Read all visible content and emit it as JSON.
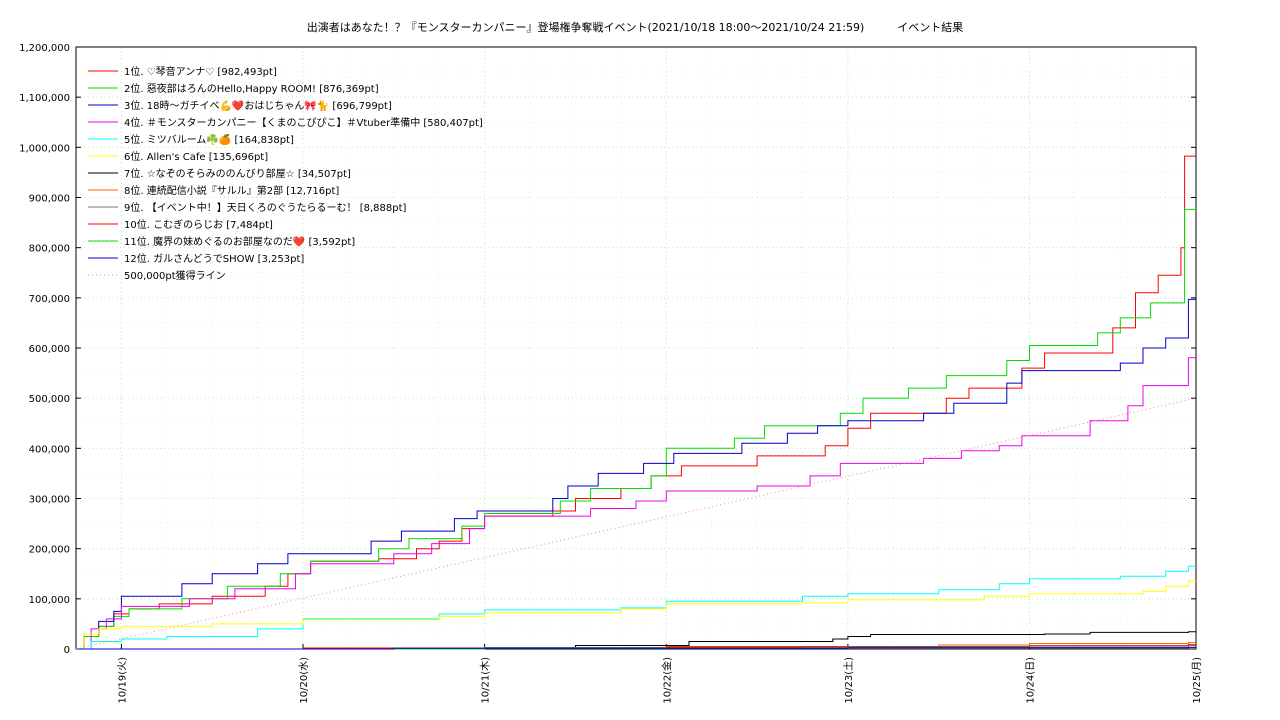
{
  "chart_data": {
    "type": "line",
    "title": "出演者はあなた！？『モンスターカンパニー』登場権争奪戦イベント(2021/10/18 18:00〜2021/10/24 21:59)　　　イベント結果",
    "xlabel": "",
    "ylabel": "",
    "ylim": [
      0,
      1200000
    ],
    "xlim": [
      "2021-10-18 18:00",
      "2021-10-24 22:00"
    ],
    "grid": true,
    "legend_position": "top-left",
    "y_ticks": [
      "0",
      "100,000",
      "200,000",
      "300,000",
      "400,000",
      "500,000",
      "600,000",
      "700,000",
      "800,000",
      "900,000",
      "1,000,000",
      "1,100,000",
      "1,200,000"
    ],
    "x_ticks": [
      {
        "x": "2021-10-19 00:00",
        "label": "10/19(火)"
      },
      {
        "x": "2021-10-20 00:00",
        "label": "10/20(水)"
      },
      {
        "x": "2021-10-21 00:00",
        "label": "10/21(木)"
      },
      {
        "x": "2021-10-22 00:00",
        "label": "10/22(金)"
      },
      {
        "x": "2021-10-23 00:00",
        "label": "10/23(土)"
      },
      {
        "x": "2021-10-24 00:00",
        "label": "10/24(日)"
      },
      {
        "x": "2021-10-25 00:00",
        "label": "10/25(月)"
      }
    ],
    "series": [
      {
        "name": "1位. ♡琴音アンナ♡ [982,493pt]",
        "color": "#ff0000",
        "points": [
          [
            "2021-10-18 18:00",
            0
          ],
          [
            "2021-10-18 19:00",
            25000
          ],
          [
            "2021-10-18 21:00",
            45000
          ],
          [
            "2021-10-18 23:00",
            70000
          ],
          [
            "2021-10-19 01:00",
            80000
          ],
          [
            "2021-10-19 05:00",
            90000
          ],
          [
            "2021-10-19 12:00",
            105000
          ],
          [
            "2021-10-19 19:00",
            125000
          ],
          [
            "2021-10-19 22:00",
            150000
          ],
          [
            "2021-10-20 01:00",
            175000
          ],
          [
            "2021-10-20 10:00",
            180000
          ],
          [
            "2021-10-20 15:00",
            200000
          ],
          [
            "2021-10-20 18:00",
            215000
          ],
          [
            "2021-10-20 21:00",
            240000
          ],
          [
            "2021-10-21 00:00",
            265000
          ],
          [
            "2021-10-21 09:00",
            275000
          ],
          [
            "2021-10-21 12:00",
            300000
          ],
          [
            "2021-10-21 18:00",
            320000
          ],
          [
            "2021-10-21 22:00",
            345000
          ],
          [
            "2021-10-22 02:00",
            365000
          ],
          [
            "2021-10-22 12:00",
            385000
          ],
          [
            "2021-10-22 21:00",
            405000
          ],
          [
            "2021-10-23 00:00",
            440000
          ],
          [
            "2021-10-23 03:00",
            470000
          ],
          [
            "2021-10-23 13:00",
            500000
          ],
          [
            "2021-10-23 16:00",
            520000
          ],
          [
            "2021-10-23 23:00",
            560000
          ],
          [
            "2021-10-24 02:00",
            590000
          ],
          [
            "2021-10-24 11:00",
            640000
          ],
          [
            "2021-10-24 14:00",
            710000
          ],
          [
            "2021-10-24 17:00",
            745000
          ],
          [
            "2021-10-24 20:00",
            800000
          ],
          [
            "2021-10-24 20:30",
            982493
          ],
          [
            "2021-10-24 22:00",
            982493
          ]
        ]
      },
      {
        "name": "2位. 惡夜部はろんのHello,Happy ROOM! [876,369pt]",
        "color": "#00dd00",
        "points": [
          [
            "2021-10-18 18:00",
            0
          ],
          [
            "2021-10-18 19:00",
            25000
          ],
          [
            "2021-10-18 21:00",
            45000
          ],
          [
            "2021-10-18 23:00",
            65000
          ],
          [
            "2021-10-19 01:00",
            80000
          ],
          [
            "2021-10-19 08:00",
            100000
          ],
          [
            "2021-10-19 14:00",
            125000
          ],
          [
            "2021-10-19 21:00",
            150000
          ],
          [
            "2021-10-20 01:00",
            175000
          ],
          [
            "2021-10-20 10:00",
            200000
          ],
          [
            "2021-10-20 14:00",
            220000
          ],
          [
            "2021-10-20 21:00",
            245000
          ],
          [
            "2021-10-21 00:00",
            270000
          ],
          [
            "2021-10-21 10:00",
            295000
          ],
          [
            "2021-10-21 14:00",
            320000
          ],
          [
            "2021-10-21 22:00",
            345000
          ],
          [
            "2021-10-22 00:00",
            400000
          ],
          [
            "2021-10-22 09:00",
            420000
          ],
          [
            "2021-10-22 13:00",
            445000
          ],
          [
            "2021-10-22 23:00",
            470000
          ],
          [
            "2021-10-23 02:00",
            500000
          ],
          [
            "2021-10-23 08:00",
            520000
          ],
          [
            "2021-10-23 13:00",
            545000
          ],
          [
            "2021-10-23 21:00",
            575000
          ],
          [
            "2021-10-24 00:00",
            605000
          ],
          [
            "2021-10-24 09:00",
            630000
          ],
          [
            "2021-10-24 12:00",
            660000
          ],
          [
            "2021-10-24 16:00",
            690000
          ],
          [
            "2021-10-24 20:30",
            876369
          ],
          [
            "2021-10-24 22:00",
            876369
          ]
        ]
      },
      {
        "name": "3位. 18時〜ガチイベ💪❤️おはじちゃん🎀🐈 [696,799pt]",
        "color": "#0000cc",
        "points": [
          [
            "2021-10-18 18:00",
            0
          ],
          [
            "2021-10-18 19:00",
            30000
          ],
          [
            "2021-10-18 21:00",
            55000
          ],
          [
            "2021-10-18 23:00",
            75000
          ],
          [
            "2021-10-19 00:00",
            105000
          ],
          [
            "2021-10-19 08:00",
            130000
          ],
          [
            "2021-10-19 12:00",
            150000
          ],
          [
            "2021-10-19 18:00",
            170000
          ],
          [
            "2021-10-19 22:00",
            190000
          ],
          [
            "2021-10-20 09:00",
            215000
          ],
          [
            "2021-10-20 13:00",
            235000
          ],
          [
            "2021-10-20 20:00",
            260000
          ],
          [
            "2021-10-20 23:00",
            275000
          ],
          [
            "2021-10-21 09:00",
            300000
          ],
          [
            "2021-10-21 11:00",
            325000
          ],
          [
            "2021-10-21 15:00",
            350000
          ],
          [
            "2021-10-21 21:00",
            370000
          ],
          [
            "2021-10-22 01:00",
            390000
          ],
          [
            "2021-10-22 10:00",
            410000
          ],
          [
            "2021-10-22 16:00",
            430000
          ],
          [
            "2021-10-22 20:00",
            445000
          ],
          [
            "2021-10-23 00:00",
            455000
          ],
          [
            "2021-10-23 10:00",
            470000
          ],
          [
            "2021-10-23 14:00",
            490000
          ],
          [
            "2021-10-23 21:00",
            530000
          ],
          [
            "2021-10-23 23:00",
            555000
          ],
          [
            "2021-10-24 12:00",
            570000
          ],
          [
            "2021-10-24 15:00",
            600000
          ],
          [
            "2021-10-24 18:00",
            620000
          ],
          [
            "2021-10-24 21:00",
            696799
          ],
          [
            "2021-10-24 22:00",
            696799
          ]
        ]
      },
      {
        "name": "4位. ＃モンスターカンパニー【くまのこぴぴこ】＃Vtuber準備中 [580,407pt]",
        "color": "#ee00ee",
        "points": [
          [
            "2021-10-18 18:00",
            0
          ],
          [
            "2021-10-18 20:00",
            40000
          ],
          [
            "2021-10-18 22:00",
            60000
          ],
          [
            "2021-10-19 00:00",
            85000
          ],
          [
            "2021-10-19 09:00",
            100000
          ],
          [
            "2021-10-19 15:00",
            120000
          ],
          [
            "2021-10-19 23:00",
            150000
          ],
          [
            "2021-10-20 01:00",
            170000
          ],
          [
            "2021-10-20 12:00",
            190000
          ],
          [
            "2021-10-20 17:00",
            210000
          ],
          [
            "2021-10-20 22:00",
            240000
          ],
          [
            "2021-10-21 00:00",
            265000
          ],
          [
            "2021-10-21 14:00",
            280000
          ],
          [
            "2021-10-21 20:00",
            295000
          ],
          [
            "2021-10-22 00:00",
            315000
          ],
          [
            "2021-10-22 12:00",
            325000
          ],
          [
            "2021-10-22 19:00",
            345000
          ],
          [
            "2021-10-22 23:00",
            370000
          ],
          [
            "2021-10-23 10:00",
            380000
          ],
          [
            "2021-10-23 15:00",
            395000
          ],
          [
            "2021-10-23 20:00",
            405000
          ],
          [
            "2021-10-23 23:00",
            425000
          ],
          [
            "2021-10-24 08:00",
            455000
          ],
          [
            "2021-10-24 13:00",
            485000
          ],
          [
            "2021-10-24 15:00",
            525000
          ],
          [
            "2021-10-24 21:00",
            580407
          ],
          [
            "2021-10-24 22:00",
            580407
          ]
        ]
      },
      {
        "name": "5位. ミツバルーム☘️🍊 [164,838pt]",
        "color": "#00ffff",
        "points": [
          [
            "2021-10-18 18:00",
            0
          ],
          [
            "2021-10-18 20:00",
            15000
          ],
          [
            "2021-10-19 00:00",
            20000
          ],
          [
            "2021-10-19 06:00",
            25000
          ],
          [
            "2021-10-19 18:00",
            40000
          ],
          [
            "2021-10-20 00:00",
            60000
          ],
          [
            "2021-10-20 18:00",
            70000
          ],
          [
            "2021-10-21 00:00",
            78000
          ],
          [
            "2021-10-21 18:00",
            82000
          ],
          [
            "2021-10-22 00:00",
            95000
          ],
          [
            "2021-10-22 18:00",
            105000
          ],
          [
            "2021-10-23 00:00",
            110000
          ],
          [
            "2021-10-23 12:00",
            118000
          ],
          [
            "2021-10-23 20:00",
            130000
          ],
          [
            "2021-10-24 00:00",
            140000
          ],
          [
            "2021-10-24 12:00",
            145000
          ],
          [
            "2021-10-24 18:00",
            155000
          ],
          [
            "2021-10-24 21:00",
            164838
          ],
          [
            "2021-10-24 22:00",
            164838
          ]
        ]
      },
      {
        "name": "6位. Allen's Cafe [135,696pt]",
        "color": "#ffff00",
        "points": [
          [
            "2021-10-18 18:00",
            0
          ],
          [
            "2021-10-18 19:00",
            30000
          ],
          [
            "2021-10-18 21:00",
            40000
          ],
          [
            "2021-10-19 00:00",
            45000
          ],
          [
            "2021-10-19 12:00",
            50000
          ],
          [
            "2021-10-20 00:00",
            58000
          ],
          [
            "2021-10-20 18:00",
            65000
          ],
          [
            "2021-10-21 00:00",
            72000
          ],
          [
            "2021-10-21 18:00",
            80000
          ],
          [
            "2021-10-22 00:00",
            90000
          ],
          [
            "2021-10-22 18:00",
            92000
          ],
          [
            "2021-10-23 00:00",
            98000
          ],
          [
            "2021-10-23 18:00",
            105000
          ],
          [
            "2021-10-24 00:00",
            110000
          ],
          [
            "2021-10-24 15:00",
            115000
          ],
          [
            "2021-10-24 18:00",
            125000
          ],
          [
            "2021-10-24 21:00",
            135696
          ],
          [
            "2021-10-24 22:00",
            135696
          ]
        ]
      },
      {
        "name": "7位. ☆なぞのそらみののんびり部屋☆ [34,507pt]",
        "color": "#000000",
        "points": [
          [
            "2021-10-18 18:00",
            0
          ],
          [
            "2021-10-21 00:00",
            3000
          ],
          [
            "2021-10-21 12:00",
            7000
          ],
          [
            "2021-10-22 03:00",
            15000
          ],
          [
            "2021-10-22 22:00",
            20000
          ],
          [
            "2021-10-23 00:00",
            25000
          ],
          [
            "2021-10-23 03:00",
            29000
          ],
          [
            "2021-10-24 02:00",
            30000
          ],
          [
            "2021-10-24 08:00",
            33000
          ],
          [
            "2021-10-24 21:00",
            34507
          ],
          [
            "2021-10-24 22:00",
            34507
          ]
        ]
      },
      {
        "name": "8位. 連続配信小説『サルル』第2部 [12,716pt]",
        "color": "#ff6600",
        "points": [
          [
            "2021-10-18 18:00",
            0
          ],
          [
            "2021-10-20 00:00",
            2000
          ],
          [
            "2021-10-22 00:00",
            5000
          ],
          [
            "2021-10-23 12:00",
            8000
          ],
          [
            "2021-10-24 00:00",
            11000
          ],
          [
            "2021-10-24 21:00",
            12716
          ],
          [
            "2021-10-24 22:00",
            12716
          ]
        ]
      },
      {
        "name": "9位. 【イベント中！】天日くろのぐうたらるーむ！ [8,888pt]",
        "color": "#777777",
        "points": [
          [
            "2021-10-18 18:00",
            0
          ],
          [
            "2021-10-21 00:00",
            3000
          ],
          [
            "2021-10-22 18:00",
            5000
          ],
          [
            "2021-10-24 00:00",
            7000
          ],
          [
            "2021-10-24 21:00",
            8888
          ],
          [
            "2021-10-24 22:00",
            8888
          ]
        ]
      },
      {
        "name": "10位. こむぎのらじお [7,484pt]",
        "color": "#ff0000",
        "points": [
          [
            "2021-10-18 18:00",
            0
          ],
          [
            "2021-10-20 00:00",
            2000
          ],
          [
            "2021-10-22 00:00",
            4000
          ],
          [
            "2021-10-24 00:00",
            6000
          ],
          [
            "2021-10-24 21:00",
            7484
          ],
          [
            "2021-10-24 22:00",
            7484
          ]
        ]
      },
      {
        "name": "11位. 魔界の妹めぐるのお部屋なのだ❤️ [3,592pt]",
        "color": "#00dd00",
        "points": [
          [
            "2021-10-18 18:00",
            0
          ],
          [
            "2021-10-21 00:00",
            1500
          ],
          [
            "2021-10-23 00:00",
            3000
          ],
          [
            "2021-10-24 21:00",
            3592
          ],
          [
            "2021-10-24 22:00",
            3592
          ]
        ]
      },
      {
        "name": "12位. ガルさんどうでSHOW [3,253pt]",
        "color": "#0000cc",
        "points": [
          [
            "2021-10-18 18:00",
            0
          ],
          [
            "2021-10-20 12:00",
            1500
          ],
          [
            "2021-10-23 00:00",
            2500
          ],
          [
            "2021-10-24 21:00",
            3253
          ],
          [
            "2021-10-24 22:00",
            3253
          ]
        ]
      },
      {
        "name": "500,000pt獲得ライン",
        "color": "#ff8888",
        "dotted": true,
        "points": [
          [
            "2021-10-18 18:00",
            0
          ],
          [
            "2021-10-24 22:00",
            500000
          ]
        ]
      }
    ]
  }
}
